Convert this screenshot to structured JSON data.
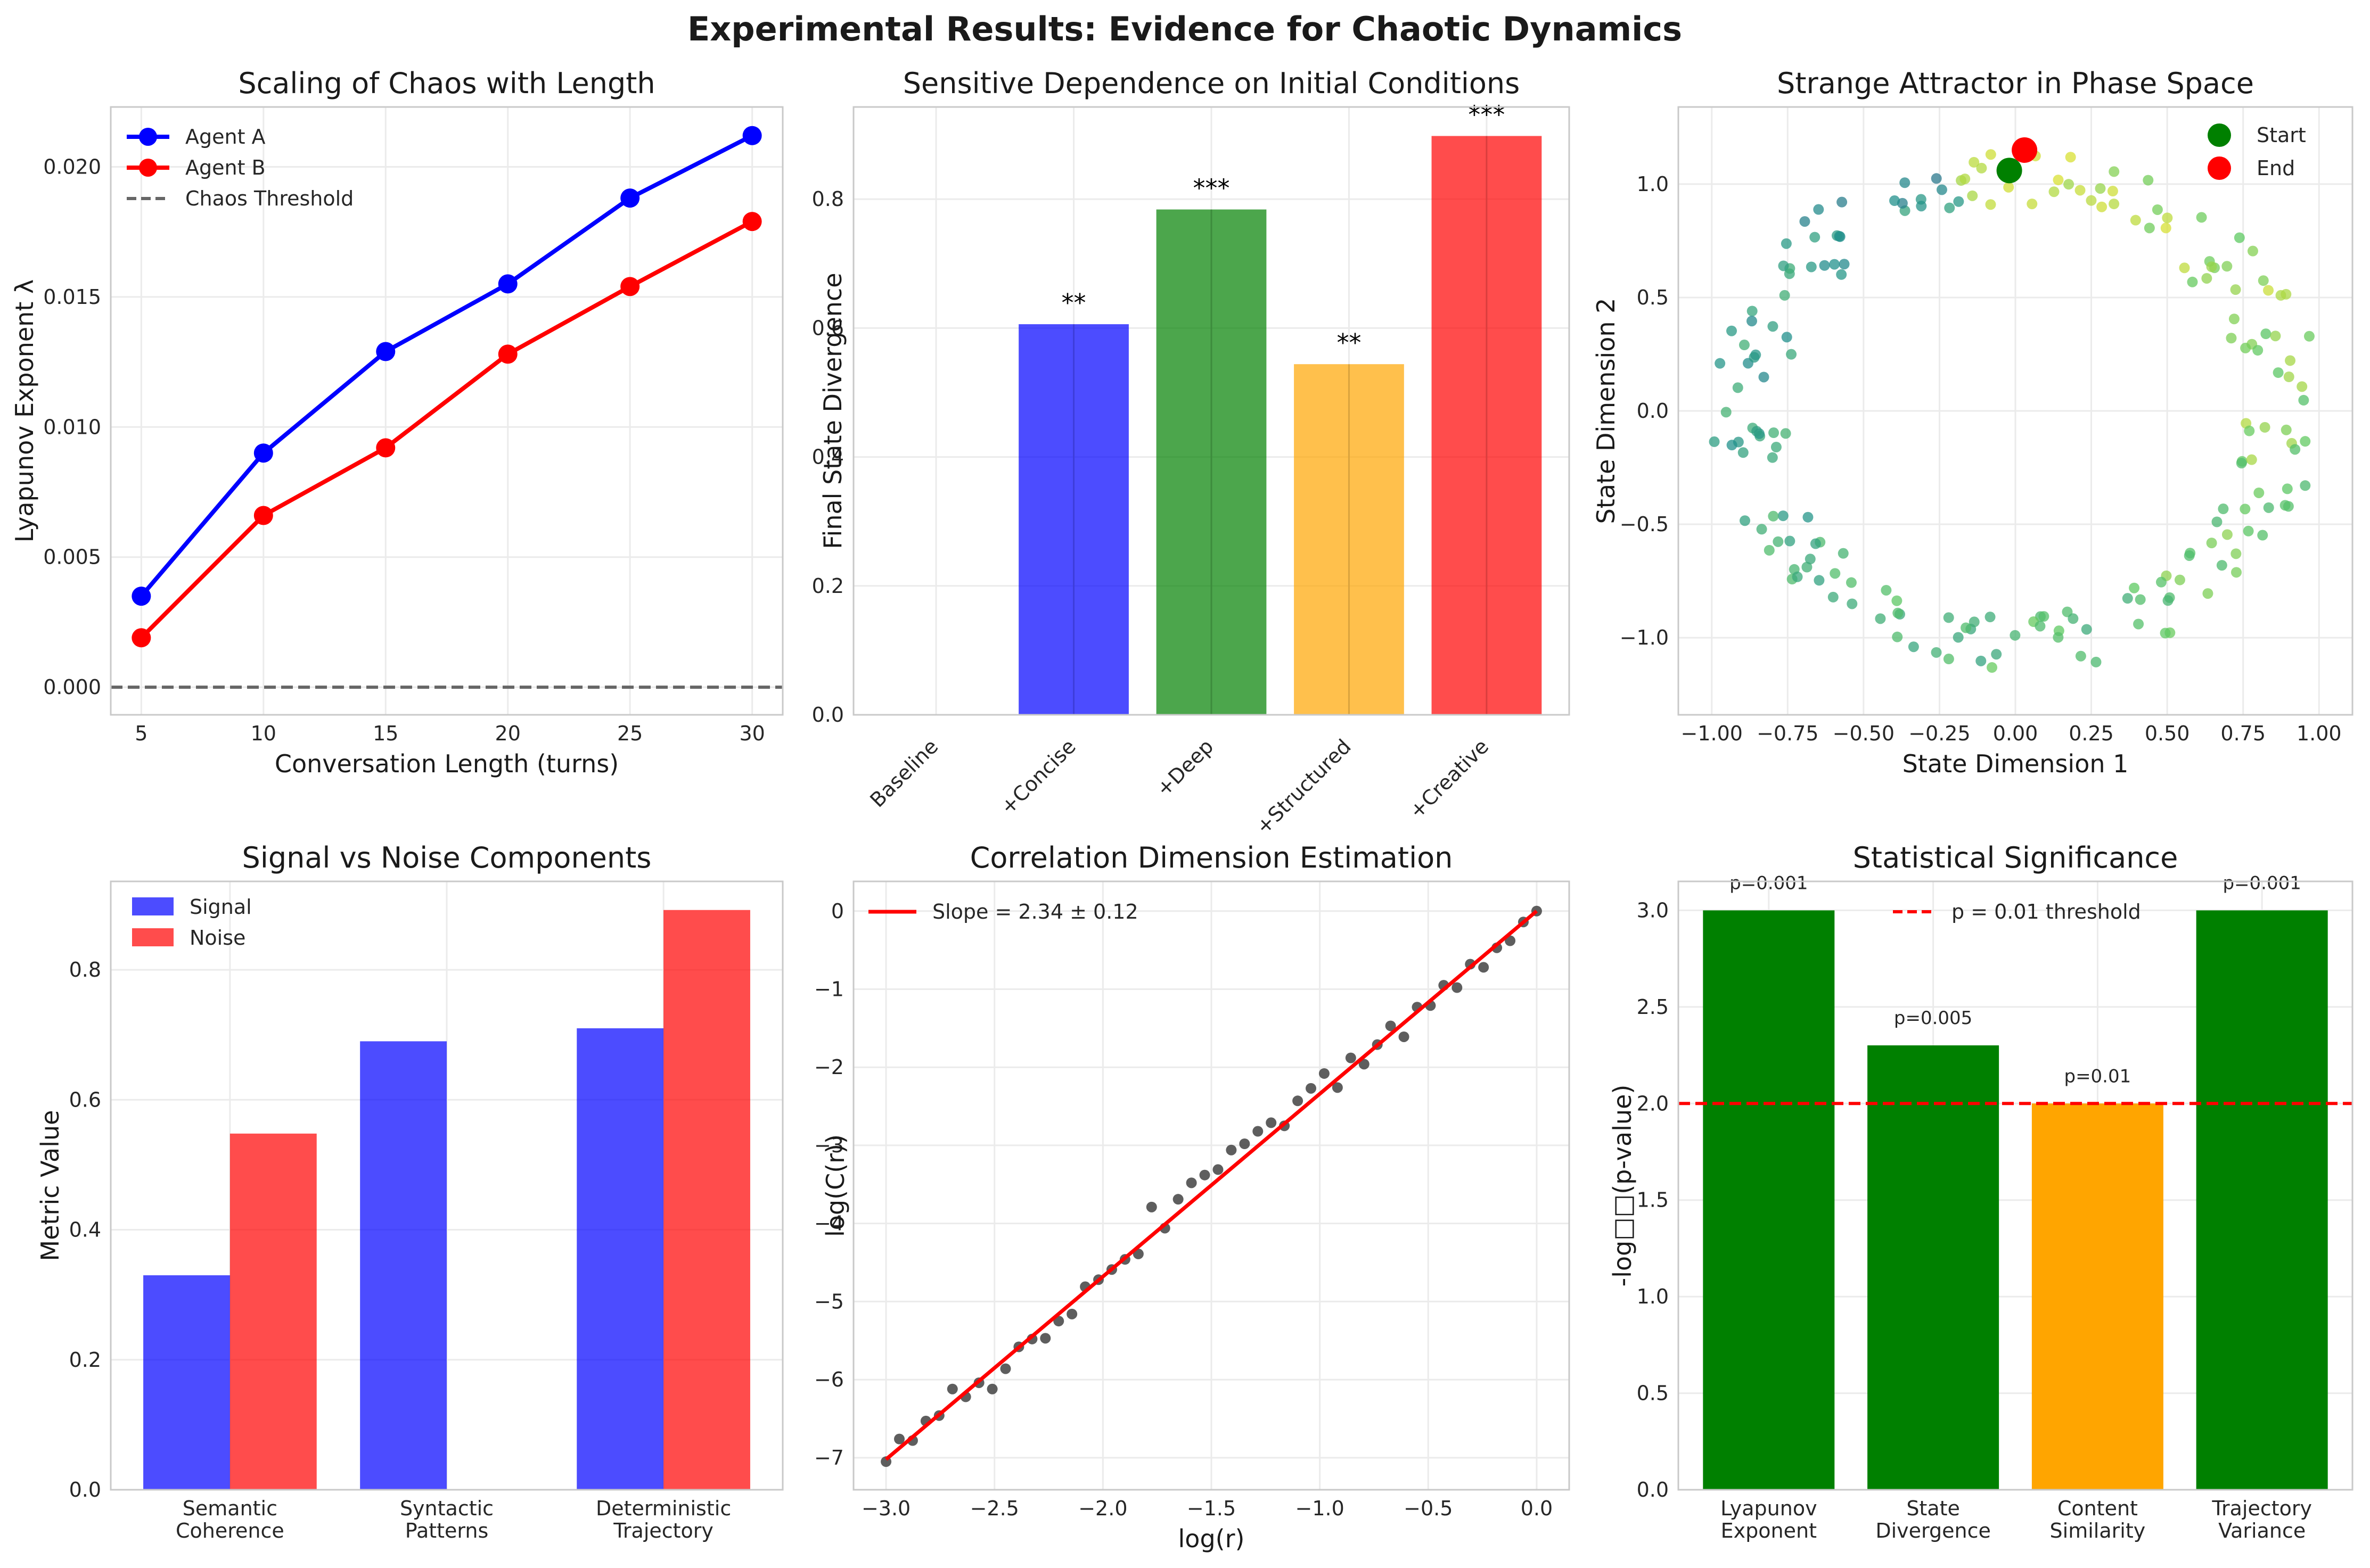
{
  "suptitle": "Experimental Results: Evidence for Chaotic Dynamics",
  "colors": {
    "blue": "#0000ff",
    "red": "#ff0000",
    "green": "#008000",
    "orange": "#ffa500",
    "gray": "#666666",
    "scatter_dark": "#4d4d4d"
  },
  "chart_data": [
    {
      "id": "scaling",
      "type": "line",
      "title": "Scaling of Chaos with Length",
      "xlabel": "Conversation Length (turns)",
      "ylabel": "Lyapunov Exponent λ",
      "x": [
        5,
        10,
        15,
        20,
        25,
        30
      ],
      "series": [
        {
          "name": "Agent A",
          "color": "#0000ff",
          "values": [
            0.0035,
            0.009,
            0.0129,
            0.0155,
            0.0188,
            0.0212
          ]
        },
        {
          "name": "Agent B",
          "color": "#ff0000",
          "values": [
            0.0019,
            0.0066,
            0.0092,
            0.0128,
            0.0154,
            0.0179
          ]
        }
      ],
      "hline": {
        "name": "Chaos Threshold",
        "value": 0.0,
        "color": "#666666",
        "style": "dashed"
      },
      "xlim": [
        3.75,
        31.25
      ],
      "ylim": [
        -0.00106,
        0.0223
      ],
      "xticks": [
        5,
        10,
        15,
        20,
        25,
        30
      ],
      "yticks": [
        0.0,
        0.005,
        0.01,
        0.015,
        0.02
      ],
      "ytick_labels": [
        "0.000",
        "0.005",
        "0.010",
        "0.015",
        "0.020"
      ],
      "legend": "upper-left",
      "grid": true
    },
    {
      "id": "sensitivity",
      "type": "bar",
      "title": "Sensitive Dependence on Initial Conditions",
      "xlabel": "",
      "ylabel": "Final State Divergence",
      "categories": [
        "Baseline",
        "+Concise",
        "+Deep",
        "+Structured",
        "+Creative"
      ],
      "values": [
        0.0,
        0.606,
        0.784,
        0.544,
        0.898
      ],
      "bar_colors": [
        "#808080",
        "#0000ff",
        "#008000",
        "#ffa500",
        "#ff0000"
      ],
      "annotations": [
        "",
        "**",
        "***",
        "**",
        "***"
      ],
      "ylim": [
        0,
        0.943
      ],
      "yticks": [
        0.0,
        0.2,
        0.4,
        0.6,
        0.8
      ],
      "ytick_labels": [
        "0.0",
        "0.2",
        "0.4",
        "0.6",
        "0.8"
      ],
      "grid": true
    },
    {
      "id": "attractor",
      "type": "scatter",
      "title": "Strange Attractor in Phase Space",
      "xlabel": "State Dimension 1",
      "ylabel": "State Dimension 2",
      "xlim": [
        -1.11,
        1.11
      ],
      "ylim": [
        -1.34,
        1.34
      ],
      "xticks": [
        -1.0,
        -0.75,
        -0.5,
        -0.25,
        0.0,
        0.25,
        0.5,
        0.75,
        1.0
      ],
      "xtick_labels": [
        "−1.00",
        "−0.75",
        "−0.50",
        "−0.25",
        "0.00",
        "0.25",
        "0.50",
        "0.75",
        "1.00"
      ],
      "yticks": [
        -1.0,
        -0.5,
        0.0,
        0.5,
        1.0
      ],
      "ytick_labels": [
        "−1.0",
        "−0.5",
        "0.0",
        "0.5",
        "1.0"
      ],
      "colormap": "viridis",
      "points_note": "points along a ring, color encodes time order",
      "start": {
        "name": "Start",
        "x": -0.02,
        "y": 1.06,
        "color": "#008000"
      },
      "end": {
        "name": "End",
        "x": 0.03,
        "y": 1.15,
        "color": "#ff0000"
      },
      "legend": "upper-right",
      "grid": true
    },
    {
      "id": "signal_noise",
      "type": "bar",
      "title": "Signal vs Noise Components",
      "xlabel": "",
      "ylabel": "Metric Value",
      "categories": [
        "Semantic\nCoherence",
        "Syntactic\nPatterns",
        "Deterministic\nTrajectory"
      ],
      "series": [
        {
          "name": "Signal",
          "color": "#0000ff",
          "values": [
            0.33,
            0.69,
            0.71
          ]
        },
        {
          "name": "Noise",
          "color": "#ff0000",
          "values": [
            0.548,
            0.0,
            0.892
          ]
        }
      ],
      "ylim": [
        0,
        0.936
      ],
      "yticks": [
        0.0,
        0.2,
        0.4,
        0.6,
        0.8
      ],
      "ytick_labels": [
        "0.0",
        "0.2",
        "0.4",
        "0.6",
        "0.8"
      ],
      "legend": "upper-left",
      "grid": true
    },
    {
      "id": "correlation",
      "type": "scatter",
      "title": "Correlation Dimension Estimation",
      "xlabel": "log(r)",
      "ylabel": "log(C(r))",
      "fit": {
        "name": "Slope = 2.34 ± 0.12",
        "slope": 2.34,
        "intercept": 0.0,
        "x_range": [
          -3.0,
          0.0
        ],
        "color": "#ff0000"
      },
      "x": [
        -3.0,
        -2.9388,
        -2.8776,
        -2.8163,
        -2.7551,
        -2.6939,
        -2.6327,
        -2.5714,
        -2.5102,
        -2.449,
        -2.3878,
        -2.3265,
        -2.2653,
        -2.2041,
        -2.1429,
        -2.0816,
        -2.0204,
        -1.9592,
        -1.898,
        -1.8367,
        -1.7755,
        -1.7143,
        -1.6531,
        -1.5918,
        -1.5306,
        -1.4694,
        -1.4082,
        -1.3469,
        -1.2857,
        -1.2245,
        -1.1633,
        -1.102,
        -1.0408,
        -0.9796,
        -0.9184,
        -0.8571,
        -0.7959,
        -0.7347,
        -0.6735,
        -0.6122,
        -0.551,
        -0.4898,
        -0.4286,
        -0.3673,
        -0.3061,
        -0.2449,
        -0.1837,
        -0.1224,
        -0.0612,
        0.0
      ],
      "y": [
        -7.05,
        -6.76,
        -6.78,
        -6.53,
        -6.46,
        -6.12,
        -6.22,
        -6.04,
        -6.12,
        -5.86,
        -5.58,
        -5.48,
        -5.47,
        -5.25,
        -5.16,
        -4.81,
        -4.72,
        -4.59,
        -4.46,
        -4.39,
        -3.79,
        -4.06,
        -3.69,
        -3.48,
        -3.38,
        -3.31,
        -3.06,
        -2.98,
        -2.82,
        -2.71,
        -2.75,
        -2.43,
        -2.27,
        -2.08,
        -2.26,
        -1.88,
        -1.96,
        -1.71,
        -1.47,
        -1.61,
        -1.23,
        -1.21,
        -0.95,
        -0.98,
        -0.68,
        -0.72,
        -0.47,
        -0.38,
        -0.14,
        0.0
      ],
      "xlim": [
        -3.15,
        0.15
      ],
      "ylim": [
        -7.41,
        0.38
      ],
      "xticks": [
        -3.0,
        -2.5,
        -2.0,
        -1.5,
        -1.0,
        -0.5,
        0.0
      ],
      "xtick_labels": [
        "−3.0",
        "−2.5",
        "−2.0",
        "−1.5",
        "−1.0",
        "−0.5",
        "0.0"
      ],
      "yticks": [
        -7,
        -6,
        -5,
        -4,
        -3,
        -2,
        -1,
        0
      ],
      "ytick_labels": [
        "−7",
        "−6",
        "−5",
        "−4",
        "−3",
        "−2",
        "−1",
        "0"
      ],
      "legend": "upper-left",
      "grid": true
    },
    {
      "id": "significance",
      "type": "bar",
      "title": "Statistical Significance",
      "xlabel": "",
      "ylabel": "-log□□(p-value)",
      "categories": [
        "Lyapunov\nExponent",
        "State\nDivergence",
        "Content\nSimilarity",
        "Trajectory\nVariance"
      ],
      "values": [
        3.0,
        2.301,
        2.0,
        3.0
      ],
      "bar_colors": [
        "#008000",
        "#008000",
        "#ffa500",
        "#008000"
      ],
      "annotations": [
        "p=0.001",
        "p=0.005",
        "p=0.01",
        "p=0.001"
      ],
      "hline": {
        "name": "p = 0.01 threshold",
        "value": 2.0,
        "color": "#ff0000",
        "style": "dashed"
      },
      "ylim": [
        0,
        3.15
      ],
      "yticks": [
        0.0,
        0.5,
        1.0,
        1.5,
        2.0,
        2.5,
        3.0
      ],
      "ytick_labels": [
        "0.0",
        "0.5",
        "1.0",
        "1.5",
        "2.0",
        "2.5",
        "3.0"
      ],
      "legend": "upper-center",
      "grid": true
    }
  ]
}
